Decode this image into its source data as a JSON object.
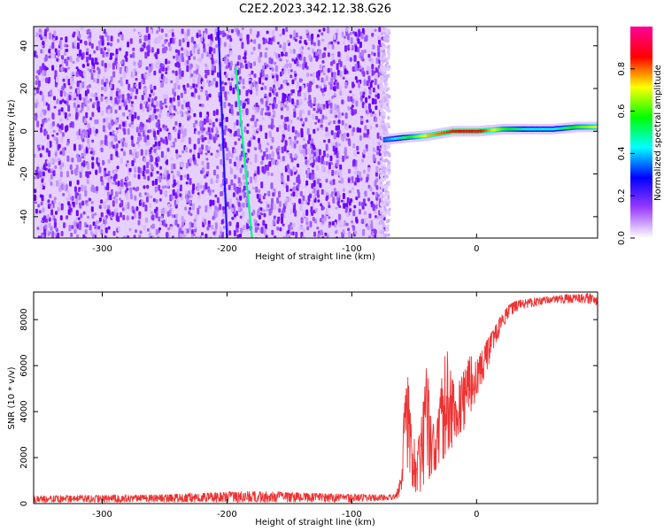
{
  "title": "C2E2.2023.342.12.38.G26",
  "chart_data": [
    {
      "type": "heatmap",
      "xlabel": "Height of straight line (km)",
      "ylabel": "Frequency (Hz)",
      "xlim": [
        -355,
        97
      ],
      "ylim": [
        -50,
        49
      ],
      "xticks": [
        -300,
        -200,
        -100,
        0
      ],
      "yticks": [
        -40,
        -20,
        0,
        20,
        40
      ],
      "noise_region_x": [
        -355,
        -75
      ],
      "meteor_streaks": [
        {
          "x": [
            -207,
            -200
          ],
          "y": [
            49,
            -50
          ],
          "peak": 0.25
        },
        {
          "x": [
            -193,
            -180
          ],
          "y": [
            30,
            -50
          ],
          "peak": 0.5
        }
      ],
      "signal_trace": {
        "x": [
          -75,
          -60,
          -40,
          -20,
          0,
          20,
          40,
          60,
          80,
          97
        ],
        "y": [
          -4,
          -3,
          -2,
          0,
          0,
          1,
          1,
          1,
          2,
          2
        ],
        "amplitude": [
          0.35,
          0.5,
          0.75,
          0.85,
          0.9,
          0.6,
          0.45,
          0.45,
          0.6,
          0.7
        ]
      },
      "colorbar": {
        "label": "Normalized spectral amplitude",
        "range": [
          0,
          1
        ],
        "ticks": [
          "0.0",
          "0.2",
          "0.4",
          "0.6",
          "0.8"
        ],
        "colors": [
          "#ffffff",
          "#9a3cff",
          "#0000ff",
          "#00ffff",
          "#00ff00",
          "#ffff00",
          "#ff0000",
          "#ff0099"
        ]
      }
    },
    {
      "type": "line",
      "xlabel": "Height of straight line (km)",
      "ylabel": "SNR (10 * v/v)",
      "xlim": [
        -355,
        97
      ],
      "ylim": [
        0,
        9200
      ],
      "xticks": [
        -300,
        -200,
        -100,
        0
      ],
      "yticks": [
        0,
        2000,
        4000,
        6000,
        8000
      ],
      "color": "#ee3333",
      "envelope": {
        "x": [
          -355,
          -250,
          -180,
          -100,
          -65,
          -62,
          -58,
          -55,
          -52,
          -48,
          -45,
          -40,
          -35,
          -30,
          -25,
          -20,
          -15,
          -10,
          -5,
          0,
          5,
          10,
          15,
          20,
          25,
          30,
          40,
          50,
          60,
          70,
          80,
          90,
          97
        ],
        "low": [
          50,
          50,
          50,
          50,
          150,
          200,
          900,
          1500,
          800,
          400,
          500,
          800,
          1300,
          1600,
          2000,
          2400,
          3000,
          3200,
          3800,
          4500,
          5200,
          6000,
          6800,
          7500,
          8000,
          8300,
          8500,
          8600,
          8700,
          8700,
          8750,
          8700,
          8600
        ],
        "high": [
          350,
          400,
          550,
          400,
          400,
          900,
          4200,
          5800,
          3500,
          2300,
          3300,
          6000,
          3500,
          4200,
          7300,
          5500,
          5200,
          5800,
          6500,
          6200,
          6800,
          7300,
          7800,
          8200,
          8600,
          8800,
          8900,
          9000,
          9000,
          9100,
          9100,
          9150,
          8950
        ]
      }
    }
  ]
}
